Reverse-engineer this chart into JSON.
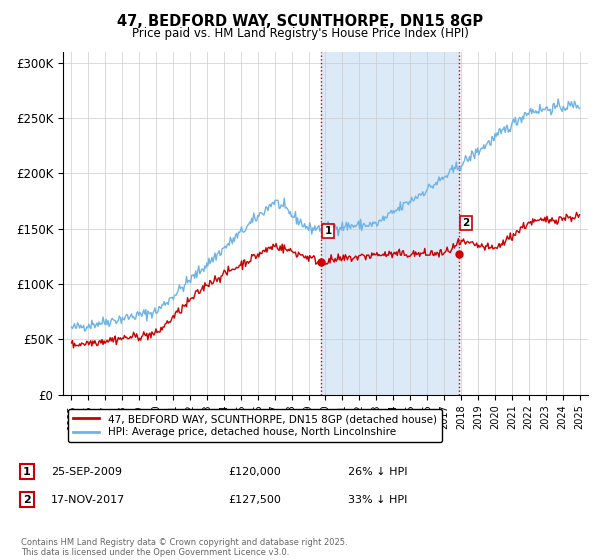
{
  "title": "47, BEDFORD WAY, SCUNTHORPE, DN15 8GP",
  "subtitle": "Price paid vs. HM Land Registry's House Price Index (HPI)",
  "legend_line1": "47, BEDFORD WAY, SCUNTHORPE, DN15 8GP (detached house)",
  "legend_line2": "HPI: Average price, detached house, North Lincolnshire",
  "sale1_date": "25-SEP-2009",
  "sale1_price": "£120,000",
  "sale1_note": "26% ↓ HPI",
  "sale2_date": "17-NOV-2017",
  "sale2_price": "£127,500",
  "sale2_note": "33% ↓ HPI",
  "sale1_year": 2009.73,
  "sale1_value": 120000,
  "sale2_year": 2017.88,
  "sale2_value": 127500,
  "copyright": "Contains HM Land Registry data © Crown copyright and database right 2025.\nThis data is licensed under the Open Government Licence v3.0.",
  "hpi_color": "#6db3e8",
  "property_color": "#cc0000",
  "shade_color": "#dce9f7",
  "grid_color": "#cccccc",
  "bg_color": "#ffffff",
  "ylim": [
    0,
    310000
  ],
  "xlim": [
    1994.5,
    2025.5
  ]
}
